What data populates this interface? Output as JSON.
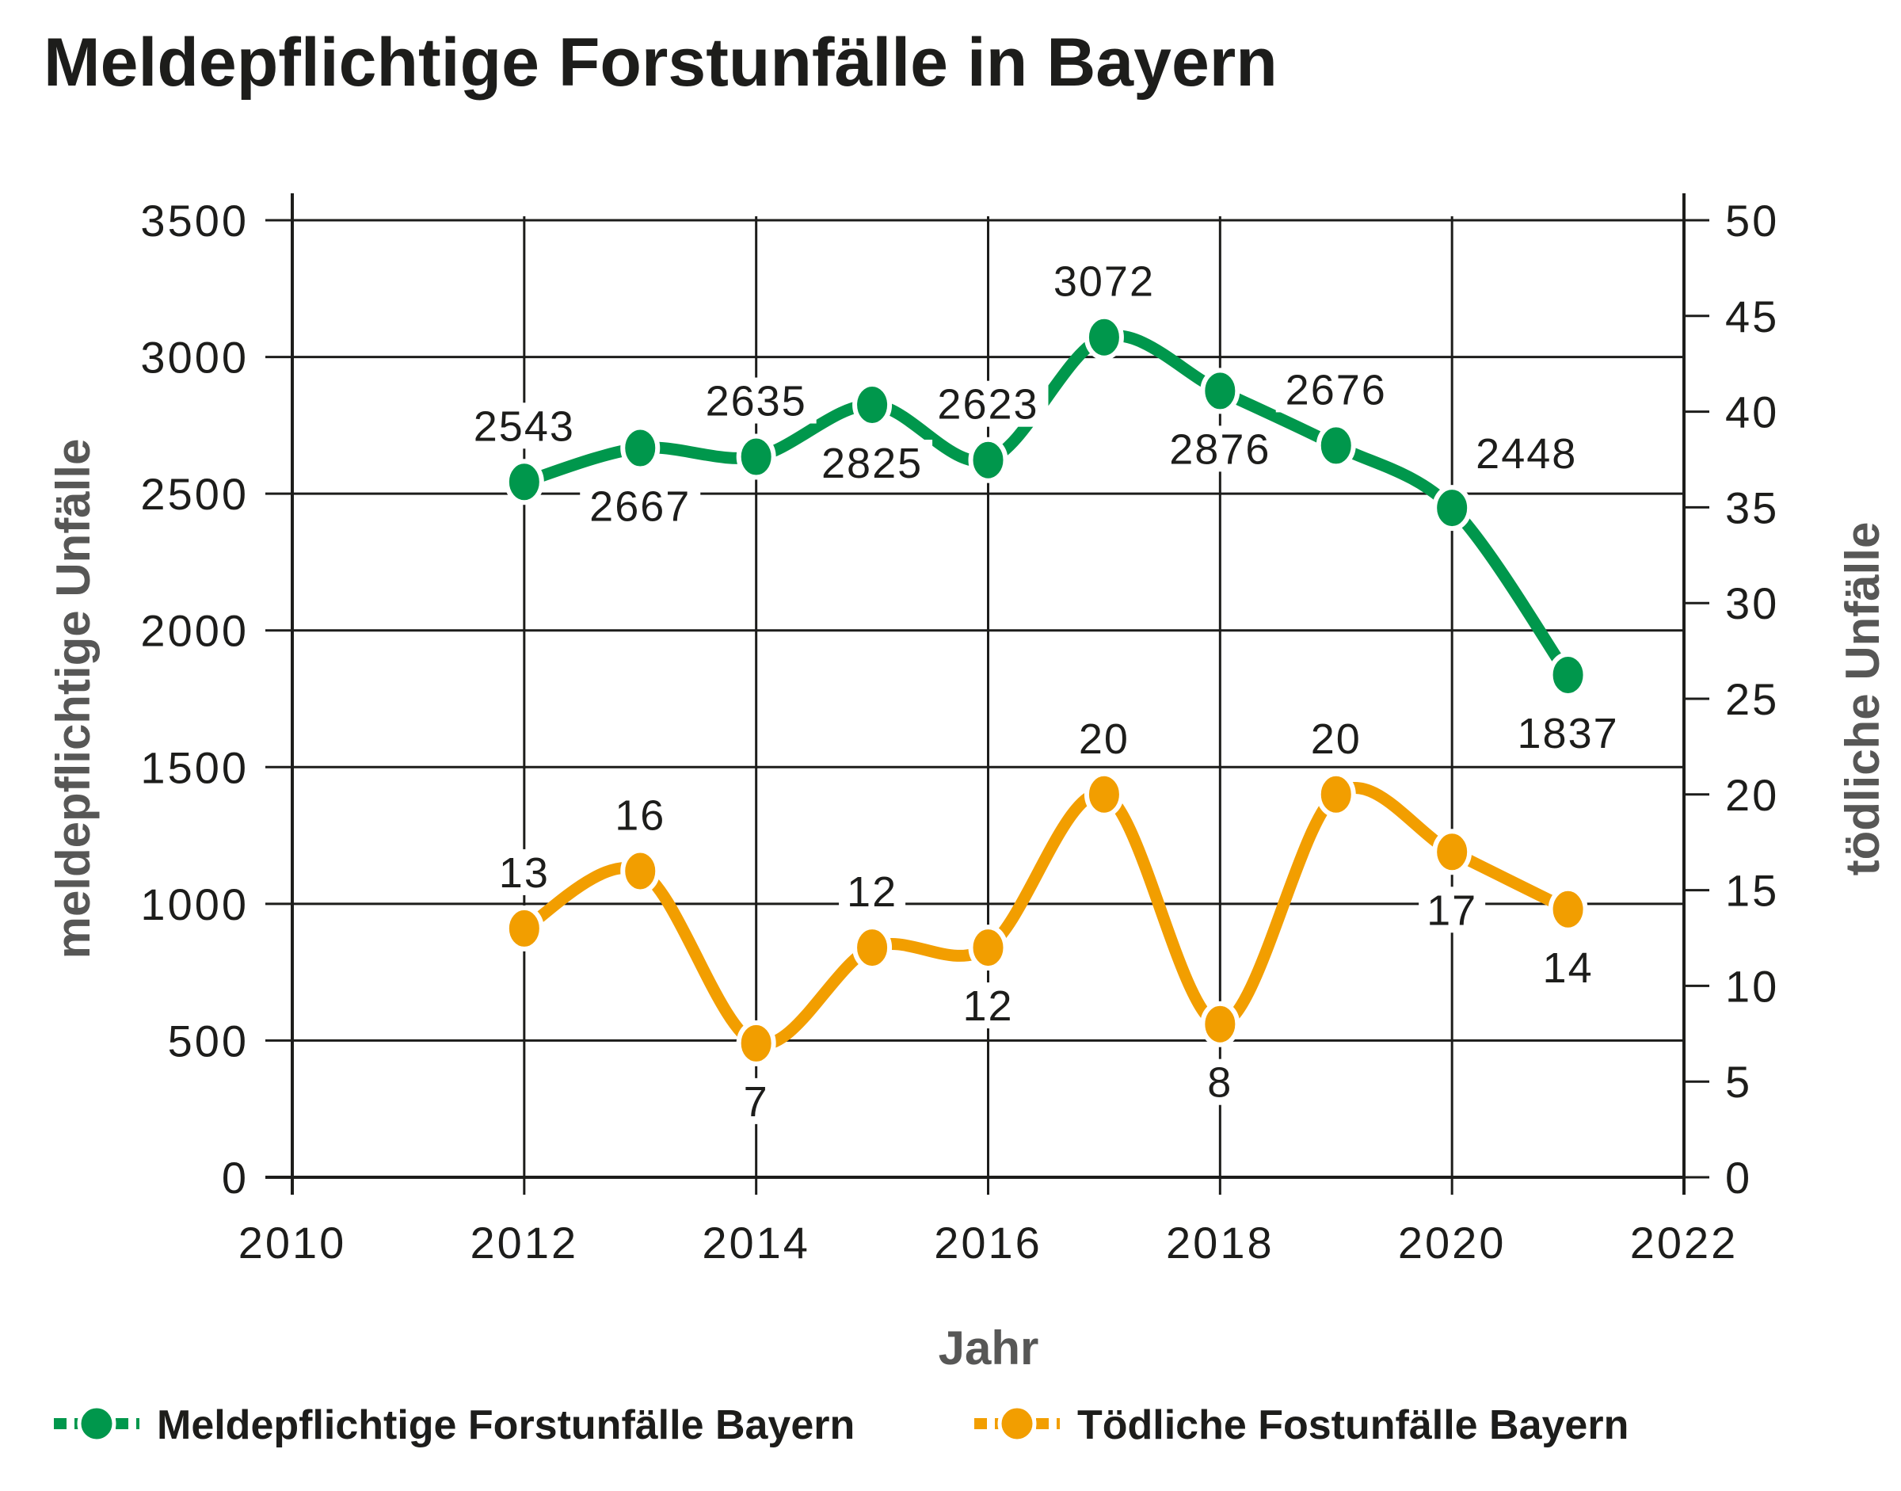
{
  "chart_data": {
    "type": "line",
    "title": "Meldepflichtige Forstunfälle in Bayern",
    "xlabel": "Jahr",
    "ylabel": "meldepflichtige Unfälle",
    "y2label": "tödliche Unfälle",
    "xlim": [
      2010,
      2022
    ],
    "ylim": [
      0,
      3500
    ],
    "y2lim": [
      0,
      50
    ],
    "x_ticks": [
      "2010",
      "2012",
      "2014",
      "2016",
      "2018",
      "2020",
      "2022"
    ],
    "y_ticks": [
      "0",
      "500",
      "1000",
      "1500",
      "2000",
      "2500",
      "3000",
      "3500"
    ],
    "y2_ticks": [
      "0",
      "5",
      "10",
      "15",
      "20",
      "25",
      "30",
      "35",
      "40",
      "45",
      "50"
    ],
    "grid": true,
    "legend_position": "bottom",
    "x": [
      2012,
      2013,
      2014,
      2015,
      2016,
      2017,
      2018,
      2019,
      2020,
      2021
    ],
    "series": [
      {
        "name": "Meldepflichtige Forstunfälle Bayern",
        "axis": "left",
        "color": "#00974c",
        "values": [
          2543,
          2667,
          2635,
          2825,
          2623,
          3072,
          2876,
          2676,
          2448,
          1837
        ],
        "labels": [
          "2543",
          "2667",
          "2635",
          "2825",
          "2623",
          "3072",
          "2876",
          "2676",
          "2448",
          "1837"
        ],
        "label_placement": [
          "above",
          "below",
          "above",
          "below",
          "above",
          "above",
          "below",
          "above",
          "above-right",
          "below"
        ]
      },
      {
        "name": "Tödliche Fostunfälle Bayern",
        "axis": "right",
        "color": "#f29e00",
        "values": [
          13,
          16,
          7,
          12,
          12,
          20,
          8,
          20,
          17,
          14
        ],
        "labels": [
          "13",
          "16",
          "7",
          "12",
          "12",
          "20",
          "8",
          "20",
          "17",
          "14"
        ],
        "label_placement": [
          "above",
          "above",
          "below",
          "above",
          "below",
          "above",
          "below",
          "above",
          "below",
          "below"
        ]
      }
    ]
  }
}
